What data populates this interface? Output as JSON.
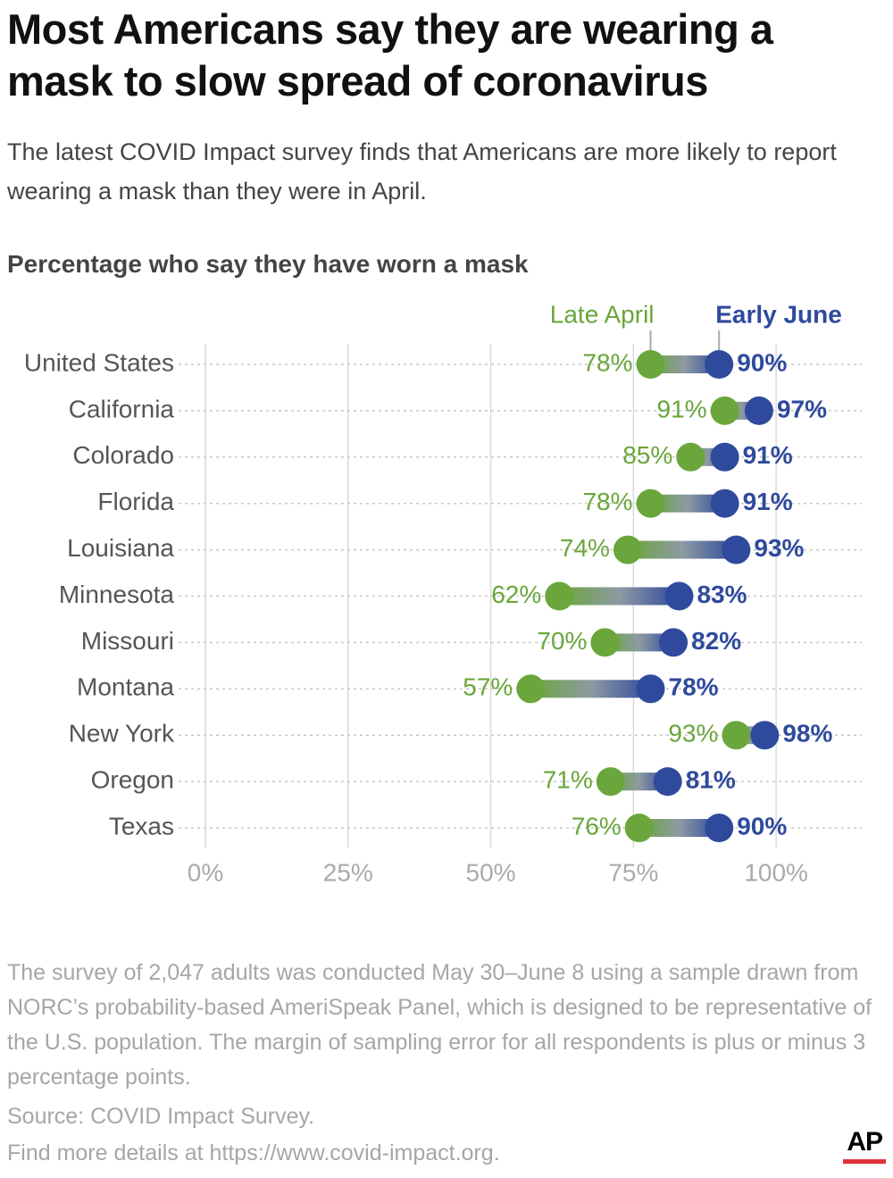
{
  "chart_data": {
    "type": "dumbbell",
    "title": "Most Americans say they are wearing a mask to slow spread of coronavirus",
    "subtitle": "The latest COVID Impact survey finds that Americans are more likely to report wearing a mask than they were in April.",
    "chart_subtitle": "Percentage who say they have worn a mask",
    "categories": [
      "United States",
      "California",
      "Colorado",
      "Florida",
      "Louisiana",
      "Minnesota",
      "Missouri",
      "Montana",
      "New York",
      "Oregon",
      "Texas"
    ],
    "series": [
      {
        "name": "Late April",
        "color": "#6aa63b",
        "values": [
          78,
          91,
          85,
          78,
          74,
          62,
          70,
          57,
          93,
          71,
          76
        ],
        "value_labels": [
          "78%",
          "91%",
          "85%",
          "78%",
          "74%",
          "62%",
          "70%",
          "57%",
          "93%",
          "71%",
          "76%"
        ]
      },
      {
        "name": "Early June",
        "color": "#2f4a9c",
        "values": [
          90,
          97,
          91,
          91,
          93,
          83,
          82,
          78,
          98,
          81,
          90
        ],
        "value_labels": [
          "90%",
          "97%",
          "91%",
          "91%",
          "93%",
          "83%",
          "82%",
          "78%",
          "98%",
          "81%",
          "90%"
        ]
      }
    ],
    "xlim": [
      0,
      115
    ],
    "xticks": [
      {
        "value": 0,
        "label": "0%"
      },
      {
        "value": 25,
        "label": "25%"
      },
      {
        "value": 50,
        "label": "50%"
      },
      {
        "value": 75,
        "label": "75%"
      },
      {
        "value": 100,
        "label": "100%"
      }
    ],
    "grid": true,
    "note": "The survey of 2,047 adults was conducted May 30–June 8 using a sample drawn from NORC’s probability-based AmeriSpeak Panel, which is designed to be representative of the U.S. population. The margin of sampling error for all respondents is plus or minus 3 percentage points.",
    "source": "Source: COVID Impact Survey.",
    "more_info": "Find more details at https://www.covid-impact.org.",
    "logo": "AP"
  }
}
